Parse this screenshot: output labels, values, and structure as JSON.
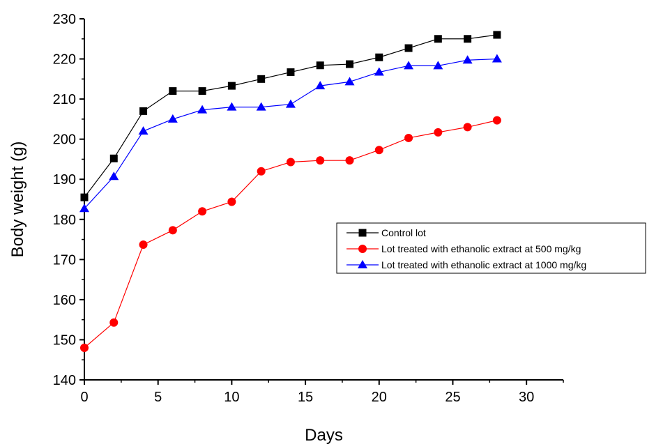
{
  "chart_data": {
    "type": "line",
    "title": "",
    "xlabel": "Days",
    "ylabel": "Body weight (g)",
    "xlim": [
      0,
      32.5
    ],
    "ylim": [
      140,
      230
    ],
    "xticks": [
      0,
      5,
      10,
      15,
      20,
      25,
      30
    ],
    "yticks": [
      140,
      150,
      160,
      170,
      180,
      190,
      200,
      210,
      220,
      230
    ],
    "grid": false,
    "legend_position": "right",
    "x": [
      0,
      2,
      4,
      6,
      8,
      10,
      12,
      14,
      16,
      18,
      20,
      22,
      24,
      26,
      28
    ],
    "series": [
      {
        "name": "Control lot",
        "color": "#000000",
        "marker": "square",
        "values": [
          185.5,
          195.2,
          207.0,
          212.0,
          212.0,
          213.3,
          215.0,
          216.7,
          218.4,
          218.7,
          220.4,
          222.7,
          225.0,
          225.0,
          226.0
        ]
      },
      {
        "name": "Lot treated with ethanolic extract at 500 mg/kg",
        "color": "#ff0000",
        "marker": "circle",
        "values": [
          148.0,
          154.3,
          173.7,
          177.3,
          182.0,
          184.4,
          192.0,
          194.3,
          194.7,
          194.7,
          197.3,
          200.3,
          201.7,
          203.0,
          204.7
        ]
      },
      {
        "name": "Lot treated with ethanolic extract at 1000 mg/kg",
        "color": "#0000ff",
        "marker": "triangle",
        "values": [
          182.7,
          190.7,
          202.0,
          205.0,
          207.3,
          208.0,
          208.0,
          208.7,
          213.3,
          214.3,
          216.7,
          218.3,
          218.3,
          219.7,
          220.0
        ]
      }
    ]
  }
}
